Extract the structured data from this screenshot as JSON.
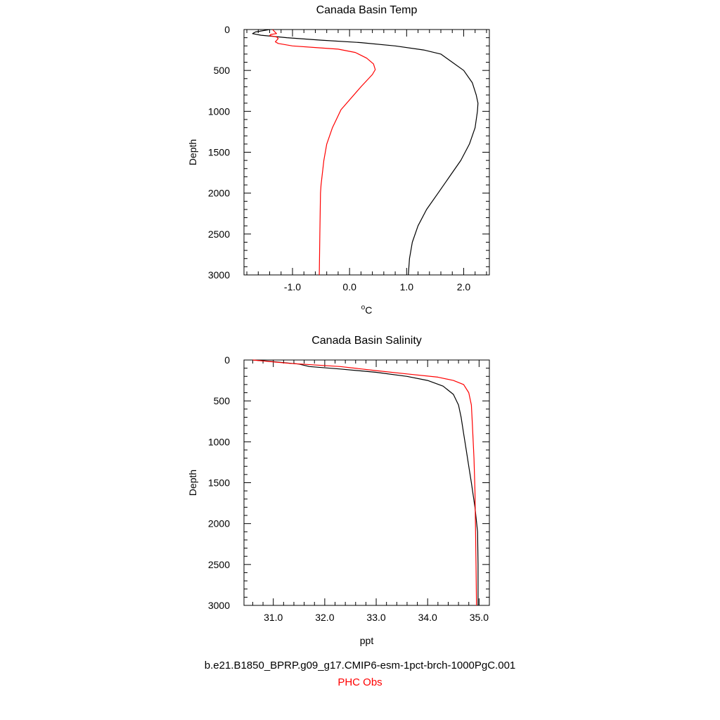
{
  "chart_data": [
    {
      "type": "line",
      "title": "Canada Basin Temp",
      "xlabel_unit": "C",
      "ylabel": "Depth",
      "xlim": [
        -1.85,
        2.45
      ],
      "ylim": [
        3000,
        0
      ],
      "xticks": [
        -1.0,
        0.0,
        1.0,
        2.0
      ],
      "xtick_labels": [
        "-1.0",
        "0.0",
        "1.0",
        "2.0"
      ],
      "xminor_step": 0.2,
      "yticks": [
        0,
        500,
        1000,
        1500,
        2000,
        2500,
        3000
      ],
      "ytick_labels": [
        "0",
        "500",
        "1000",
        "1500",
        "2000",
        "2500",
        "3000"
      ],
      "yminor_step": 100,
      "grid": false,
      "series": [
        {
          "key": "model",
          "color": "#000000",
          "points": [
            [
              -1.4,
              0
            ],
            [
              -1.65,
              30
            ],
            [
              -1.7,
              50
            ],
            [
              -1.55,
              70
            ],
            [
              -1.1,
              100
            ],
            [
              -0.5,
              130
            ],
            [
              0.2,
              160
            ],
            [
              0.8,
              200
            ],
            [
              1.3,
              250
            ],
            [
              1.6,
              300
            ],
            [
              1.8,
              400
            ],
            [
              2.0,
              500
            ],
            [
              2.15,
              650
            ],
            [
              2.22,
              800
            ],
            [
              2.25,
              900
            ],
            [
              2.24,
              1000
            ],
            [
              2.2,
              1200
            ],
            [
              2.1,
              1400
            ],
            [
              1.95,
              1600
            ],
            [
              1.75,
              1800
            ],
            [
              1.55,
              2000
            ],
            [
              1.35,
              2200
            ],
            [
              1.2,
              2400
            ],
            [
              1.1,
              2600
            ],
            [
              1.05,
              2800
            ],
            [
              1.03,
              3000
            ]
          ]
        },
        {
          "key": "obs",
          "color": "#ff0000",
          "points": [
            [
              -1.35,
              0
            ],
            [
              -1.28,
              50
            ],
            [
              -1.38,
              60
            ],
            [
              -1.4,
              75
            ],
            [
              -1.28,
              90
            ],
            [
              -1.25,
              110
            ],
            [
              -1.3,
              150
            ],
            [
              -1.25,
              170
            ],
            [
              -1.0,
              200
            ],
            [
              -0.6,
              220
            ],
            [
              -0.2,
              240
            ],
            [
              0.1,
              280
            ],
            [
              0.3,
              350
            ],
            [
              0.42,
              420
            ],
            [
              0.45,
              490
            ],
            [
              0.4,
              550
            ],
            [
              0.2,
              700
            ],
            [
              -0.15,
              980
            ],
            [
              -0.3,
              1200
            ],
            [
              -0.4,
              1400
            ],
            [
              -0.45,
              1600
            ],
            [
              -0.5,
              1900
            ],
            [
              -0.51,
              2000
            ],
            [
              -0.52,
              2500
            ],
            [
              -0.53,
              3000
            ]
          ]
        }
      ]
    },
    {
      "type": "line",
      "title": "Canada Basin Salinity",
      "xlabel": "ppt",
      "ylabel": "Depth",
      "xlim": [
        30.43,
        35.2
      ],
      "ylim": [
        3000,
        0
      ],
      "xticks": [
        31.0,
        32.0,
        33.0,
        34.0,
        35.0
      ],
      "xtick_labels": [
        "31.0",
        "32.0",
        "33.0",
        "34.0",
        "35.0"
      ],
      "xminor_step": 0.2,
      "yticks": [
        0,
        500,
        1000,
        1500,
        2000,
        2500,
        3000
      ],
      "ytick_labels": [
        "0",
        "500",
        "1000",
        "1500",
        "2000",
        "2500",
        "3000"
      ],
      "yminor_step": 100,
      "grid": false,
      "series": [
        {
          "key": "model",
          "color": "#000000",
          "points": [
            [
              30.6,
              0
            ],
            [
              31.0,
              20
            ],
            [
              31.5,
              50
            ],
            [
              31.7,
              80
            ],
            [
              32.3,
              110
            ],
            [
              33.0,
              150
            ],
            [
              33.6,
              200
            ],
            [
              34.0,
              250
            ],
            [
              34.3,
              320
            ],
            [
              34.5,
              420
            ],
            [
              34.6,
              550
            ],
            [
              34.65,
              700
            ],
            [
              34.7,
              900
            ],
            [
              34.75,
              1100
            ],
            [
              34.8,
              1300
            ],
            [
              34.85,
              1500
            ],
            [
              34.92,
              1800
            ],
            [
              34.97,
              2100
            ],
            [
              34.98,
              2500
            ],
            [
              34.98,
              3000
            ]
          ]
        },
        {
          "key": "obs",
          "color": "#ff0000",
          "points": [
            [
              30.6,
              0
            ],
            [
              31.3,
              40
            ],
            [
              32.3,
              80
            ],
            [
              33.0,
              130
            ],
            [
              33.6,
              170
            ],
            [
              34.2,
              210
            ],
            [
              34.5,
              250
            ],
            [
              34.7,
              300
            ],
            [
              34.8,
              400
            ],
            [
              34.85,
              550
            ],
            [
              34.87,
              800
            ],
            [
              34.9,
              1200
            ],
            [
              34.92,
              1600
            ],
            [
              34.93,
              2000
            ],
            [
              34.94,
              2500
            ],
            [
              34.95,
              3000
            ]
          ]
        }
      ]
    }
  ],
  "legend": {
    "model_label": "b.e21.B1850_BPRP.g09_g17.CMIP6-esm-1pct-brch-1000PgC.001",
    "obs_label": "PHC Obs"
  }
}
